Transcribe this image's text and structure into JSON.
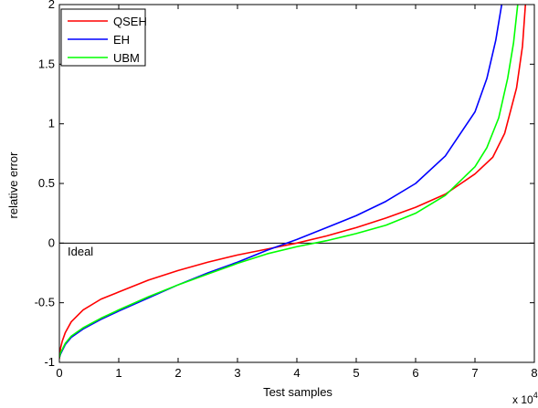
{
  "chart_data": {
    "type": "line",
    "title": "",
    "xlabel": "Test samples",
    "ylabel": "relative error",
    "x_multiplier_label": "x 10",
    "x_multiplier_exponent": "4",
    "xlim": [
      0,
      8
    ],
    "ylim": [
      -1,
      2
    ],
    "xticks": [
      "0",
      "1",
      "2",
      "3",
      "4",
      "5",
      "6",
      "7",
      "8"
    ],
    "yticks": [
      "-1",
      "-0.5",
      "0",
      "0.5",
      "1",
      "1.5",
      "2"
    ],
    "grid": false,
    "legend_position": "top-left",
    "reference_line": {
      "label": "Ideal",
      "y": 0,
      "color": "#000000"
    },
    "series": [
      {
        "name": "QSEH",
        "color": "#ff0000",
        "x": [
          0,
          0.02,
          0.05,
          0.1,
          0.2,
          0.4,
          0.7,
          1.0,
          1.5,
          2.0,
          2.5,
          3.0,
          3.5,
          4.0,
          4.5,
          5.0,
          5.5,
          6.0,
          6.5,
          7.0,
          7.3,
          7.5,
          7.7,
          7.8,
          7.85
        ],
        "y": [
          -0.97,
          -0.88,
          -0.82,
          -0.75,
          -0.66,
          -0.56,
          -0.47,
          -0.41,
          -0.31,
          -0.23,
          -0.16,
          -0.1,
          -0.05,
          0.0,
          0.06,
          0.13,
          0.21,
          0.3,
          0.41,
          0.58,
          0.72,
          0.92,
          1.3,
          1.65,
          2.0
        ]
      },
      {
        "name": "EH",
        "color": "#0000ff",
        "x": [
          0,
          0.02,
          0.05,
          0.1,
          0.2,
          0.4,
          0.7,
          1.0,
          1.5,
          2.0,
          2.5,
          3.0,
          3.5,
          4.0,
          4.5,
          5.0,
          5.5,
          6.0,
          6.5,
          7.0,
          7.2,
          7.35,
          7.45
        ],
        "y": [
          -0.96,
          -0.93,
          -0.9,
          -0.85,
          -0.79,
          -0.72,
          -0.64,
          -0.57,
          -0.46,
          -0.35,
          -0.25,
          -0.16,
          -0.06,
          0.03,
          0.13,
          0.23,
          0.35,
          0.5,
          0.73,
          1.1,
          1.38,
          1.7,
          2.0
        ]
      },
      {
        "name": "UBM",
        "color": "#00ff00",
        "x": [
          0,
          0.02,
          0.05,
          0.1,
          0.2,
          0.4,
          0.7,
          1.0,
          1.5,
          2.0,
          2.5,
          3.0,
          3.5,
          4.0,
          4.5,
          5.0,
          5.5,
          6.0,
          6.5,
          7.0,
          7.2,
          7.4,
          7.55,
          7.65,
          7.72
        ],
        "y": [
          -0.96,
          -0.92,
          -0.89,
          -0.84,
          -0.78,
          -0.71,
          -0.63,
          -0.56,
          -0.45,
          -0.35,
          -0.26,
          -0.17,
          -0.09,
          -0.03,
          0.02,
          0.08,
          0.15,
          0.25,
          0.4,
          0.64,
          0.8,
          1.05,
          1.38,
          1.68,
          2.0
        ]
      }
    ]
  }
}
